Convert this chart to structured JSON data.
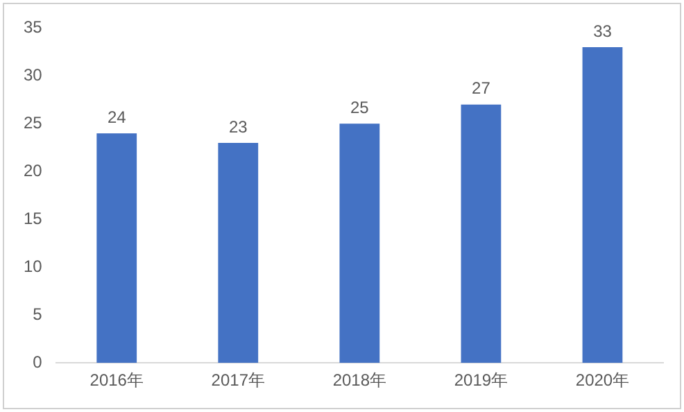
{
  "chart_data": {
    "type": "bar",
    "categories": [
      "2016年",
      "2017年",
      "2018年",
      "2019年",
      "2020年"
    ],
    "values": [
      24,
      23,
      25,
      27,
      33
    ],
    "color": "#4472c4",
    "ylim": [
      0,
      35
    ],
    "yticks": [
      0,
      5,
      10,
      15,
      20,
      25,
      30,
      35
    ],
    "grid": false,
    "data_labels": true
  }
}
